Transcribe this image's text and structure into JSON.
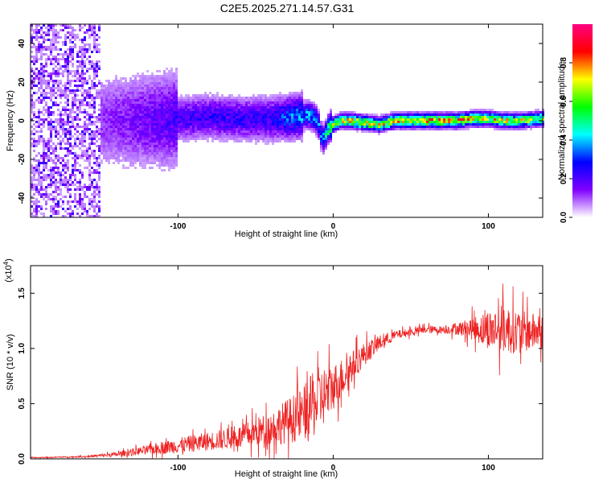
{
  "title": "C2E5.2025.271.14.57.G31",
  "chart_data": [
    {
      "type": "heatmap",
      "xlabel": "Height of straight line (km)",
      "ylabel": "Frequency (Hz)",
      "xlim": [
        -195,
        135
      ],
      "ylim": [
        -50,
        50
      ],
      "xticks": [
        -100,
        0,
        100
      ],
      "yticks": [
        -40,
        -20,
        0,
        20,
        40
      ],
      "colorbar": {
        "label": "Normalized spectral amplitude",
        "range": [
          0,
          1
        ],
        "ticks": [
          0.0,
          0.2,
          0.4,
          0.6,
          0.8
        ],
        "colors": [
          "#ffffff",
          "#8000ff",
          "#0000ff",
          "#00ffff",
          "#00ff00",
          "#ffff00",
          "#ff0000",
          "#ff0080"
        ]
      },
      "ridge": {
        "x": [
          -195,
          -150,
          -120,
          -100,
          -80,
          -60,
          -40,
          -25,
          -15,
          -10,
          -7,
          -5,
          -3,
          0,
          5,
          10,
          20,
          30,
          40,
          60,
          80,
          90,
          100,
          110,
          120,
          135
        ],
        "freq": [
          0,
          0,
          0,
          1,
          2,
          1,
          1,
          2,
          3,
          0,
          -10,
          -8,
          -4,
          -2,
          0,
          0,
          -1,
          -2,
          0,
          0,
          0,
          1,
          1,
          0,
          0,
          1
        ],
        "peak_amplitude": [
          0.1,
          0.15,
          0.22,
          0.28,
          0.3,
          0.3,
          0.32,
          0.45,
          0.5,
          0.5,
          0.45,
          0.55,
          0.7,
          0.85,
          0.9,
          0.95,
          0.9,
          0.88,
          0.95,
          0.98,
          1.0,
          0.95,
          0.85,
          0.9,
          0.85,
          0.8
        ]
      }
    },
    {
      "type": "line",
      "xlabel": "Height of straight line (km)",
      "ylabel": "SNR (10 * v/v)",
      "yscale_label": "(x10",
      "yscale_exponent": "4",
      "xlim": [
        -195,
        135
      ],
      "ylim": [
        0,
        1.75
      ],
      "xticks": [
        -100,
        0,
        100
      ],
      "yticks": [
        0.0,
        0.5,
        1.0,
        1.5
      ],
      "color": "#ee2222",
      "envelope": {
        "x": [
          -195,
          -160,
          -140,
          -120,
          -100,
          -80,
          -60,
          -40,
          -20,
          -10,
          0,
          10,
          20,
          30,
          40,
          50,
          60,
          70,
          80,
          90,
          100,
          110,
          120,
          135
        ],
        "mean": [
          0.01,
          0.02,
          0.04,
          0.08,
          0.12,
          0.16,
          0.2,
          0.28,
          0.4,
          0.52,
          0.65,
          0.8,
          0.95,
          1.05,
          1.12,
          1.15,
          1.17,
          1.17,
          1.18,
          1.18,
          1.17,
          1.18,
          1.15,
          1.15
        ],
        "amplitude": [
          0.005,
          0.01,
          0.03,
          0.06,
          0.1,
          0.12,
          0.15,
          0.22,
          0.35,
          0.45,
          0.3,
          0.22,
          0.15,
          0.1,
          0.06,
          0.05,
          0.05,
          0.05,
          0.08,
          0.15,
          0.25,
          0.32,
          0.28,
          0.22
        ]
      }
    }
  ]
}
